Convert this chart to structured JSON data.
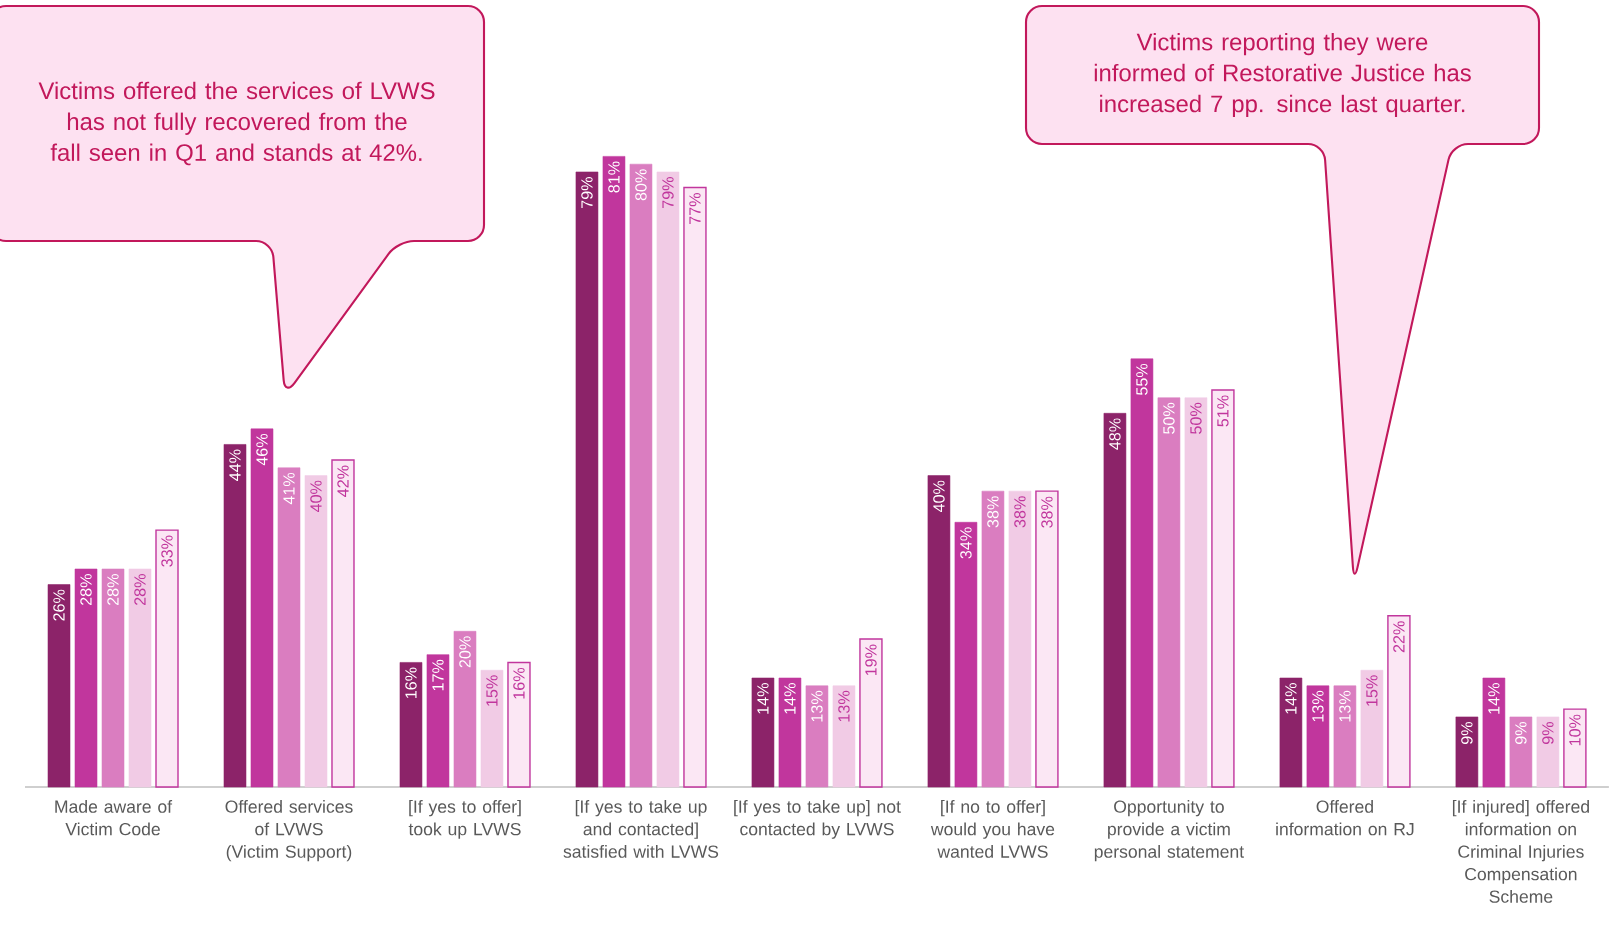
{
  "chart_data": {
    "type": "bar",
    "categories": [
      "Made aware of Victim Code",
      "Offered services of LVWS (Victim Support)",
      "[If yes to offer] took up LVWS",
      "[If yes to take up and contacted] satisfied with LVWS",
      "[If yes to take up] not contacted by LVWS",
      "[If no to offer] would you have wanted LVWS",
      "Opportunity to provide a victim personal statement",
      "Offered information on RJ",
      "[If injured] offered information on Criminal Injuries Compensation Scheme"
    ],
    "series": [
      {
        "color": "#8c2369",
        "values": [
          26,
          44,
          16,
          79,
          14,
          40,
          48,
          14,
          9
        ],
        "value_labels": [
          "26%",
          "44%",
          "16%",
          "79%",
          "14%",
          "40%",
          "48%",
          "14%",
          "9%"
        ]
      },
      {
        "color": "#c1369d",
        "values": [
          28,
          46,
          17,
          81,
          14,
          34,
          55,
          13,
          14
        ],
        "value_labels": [
          "28%",
          "46%",
          "17%",
          "81%",
          "14%",
          "34%",
          "55%",
          "13%",
          "14%"
        ]
      },
      {
        "color": "#da7dc0",
        "values": [
          28,
          41,
          20,
          80,
          13,
          38,
          50,
          13,
          9
        ],
        "value_labels": [
          "28%",
          "41%",
          "20%",
          "80%",
          "13%",
          "38%",
          "50%",
          "13%",
          "9%"
        ]
      },
      {
        "color": "#f1cbe5",
        "values": [
          28,
          40,
          15,
          79,
          13,
          38,
          50,
          15,
          9
        ],
        "value_labels": [
          "28%",
          "40%",
          "15%",
          "79%",
          "13%",
          "38%",
          "50%",
          "15%",
          "9%"
        ]
      },
      {
        "color": "#fbe7f4",
        "values": [
          33,
          42,
          16,
          77,
          19,
          38,
          51,
          22,
          10
        ],
        "value_labels": [
          "33%",
          "42%",
          "16%",
          "77%",
          "19%",
          "38%",
          "51%",
          "22%",
          "10%"
        ]
      }
    ],
    "annotations": [
      "Victims offered the services of LVWS has not fully recovered from the fall seen in Q1 and stands at 42%.",
      "Victims reporting they were informed of Restorative Justice has increased 7 pp. since last quarter."
    ]
  }
}
